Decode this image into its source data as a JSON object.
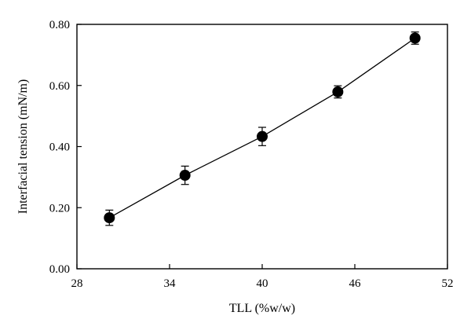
{
  "chart_data": {
    "type": "scatter",
    "title": "",
    "xlabel": "TLL (%w/w)",
    "ylabel": "Interfacial tension (mN/m)",
    "xlim": [
      28,
      52
    ],
    "ylim": [
      0.0,
      0.8
    ],
    "x_ticks": [
      28,
      34,
      40,
      46,
      52
    ],
    "y_ticks": [
      0.0,
      0.2,
      0.4,
      0.6,
      0.8
    ],
    "x_tick_labels": [
      "28",
      "34",
      "40",
      "46",
      "52"
    ],
    "y_tick_labels": [
      "0.00",
      "0.20",
      "0.40",
      "0.60",
      "0.80"
    ],
    "grid": false,
    "legend": "none",
    "series": [
      {
        "x": [
          30.1,
          35.0,
          40.0,
          44.9,
          49.9
        ],
        "y": [
          0.167,
          0.306,
          0.433,
          0.579,
          0.755
        ],
        "error": [
          0.025,
          0.03,
          0.03,
          0.02,
          0.02
        ],
        "marker": "filled-circle",
        "line": "solid",
        "color": "#000000"
      }
    ]
  }
}
